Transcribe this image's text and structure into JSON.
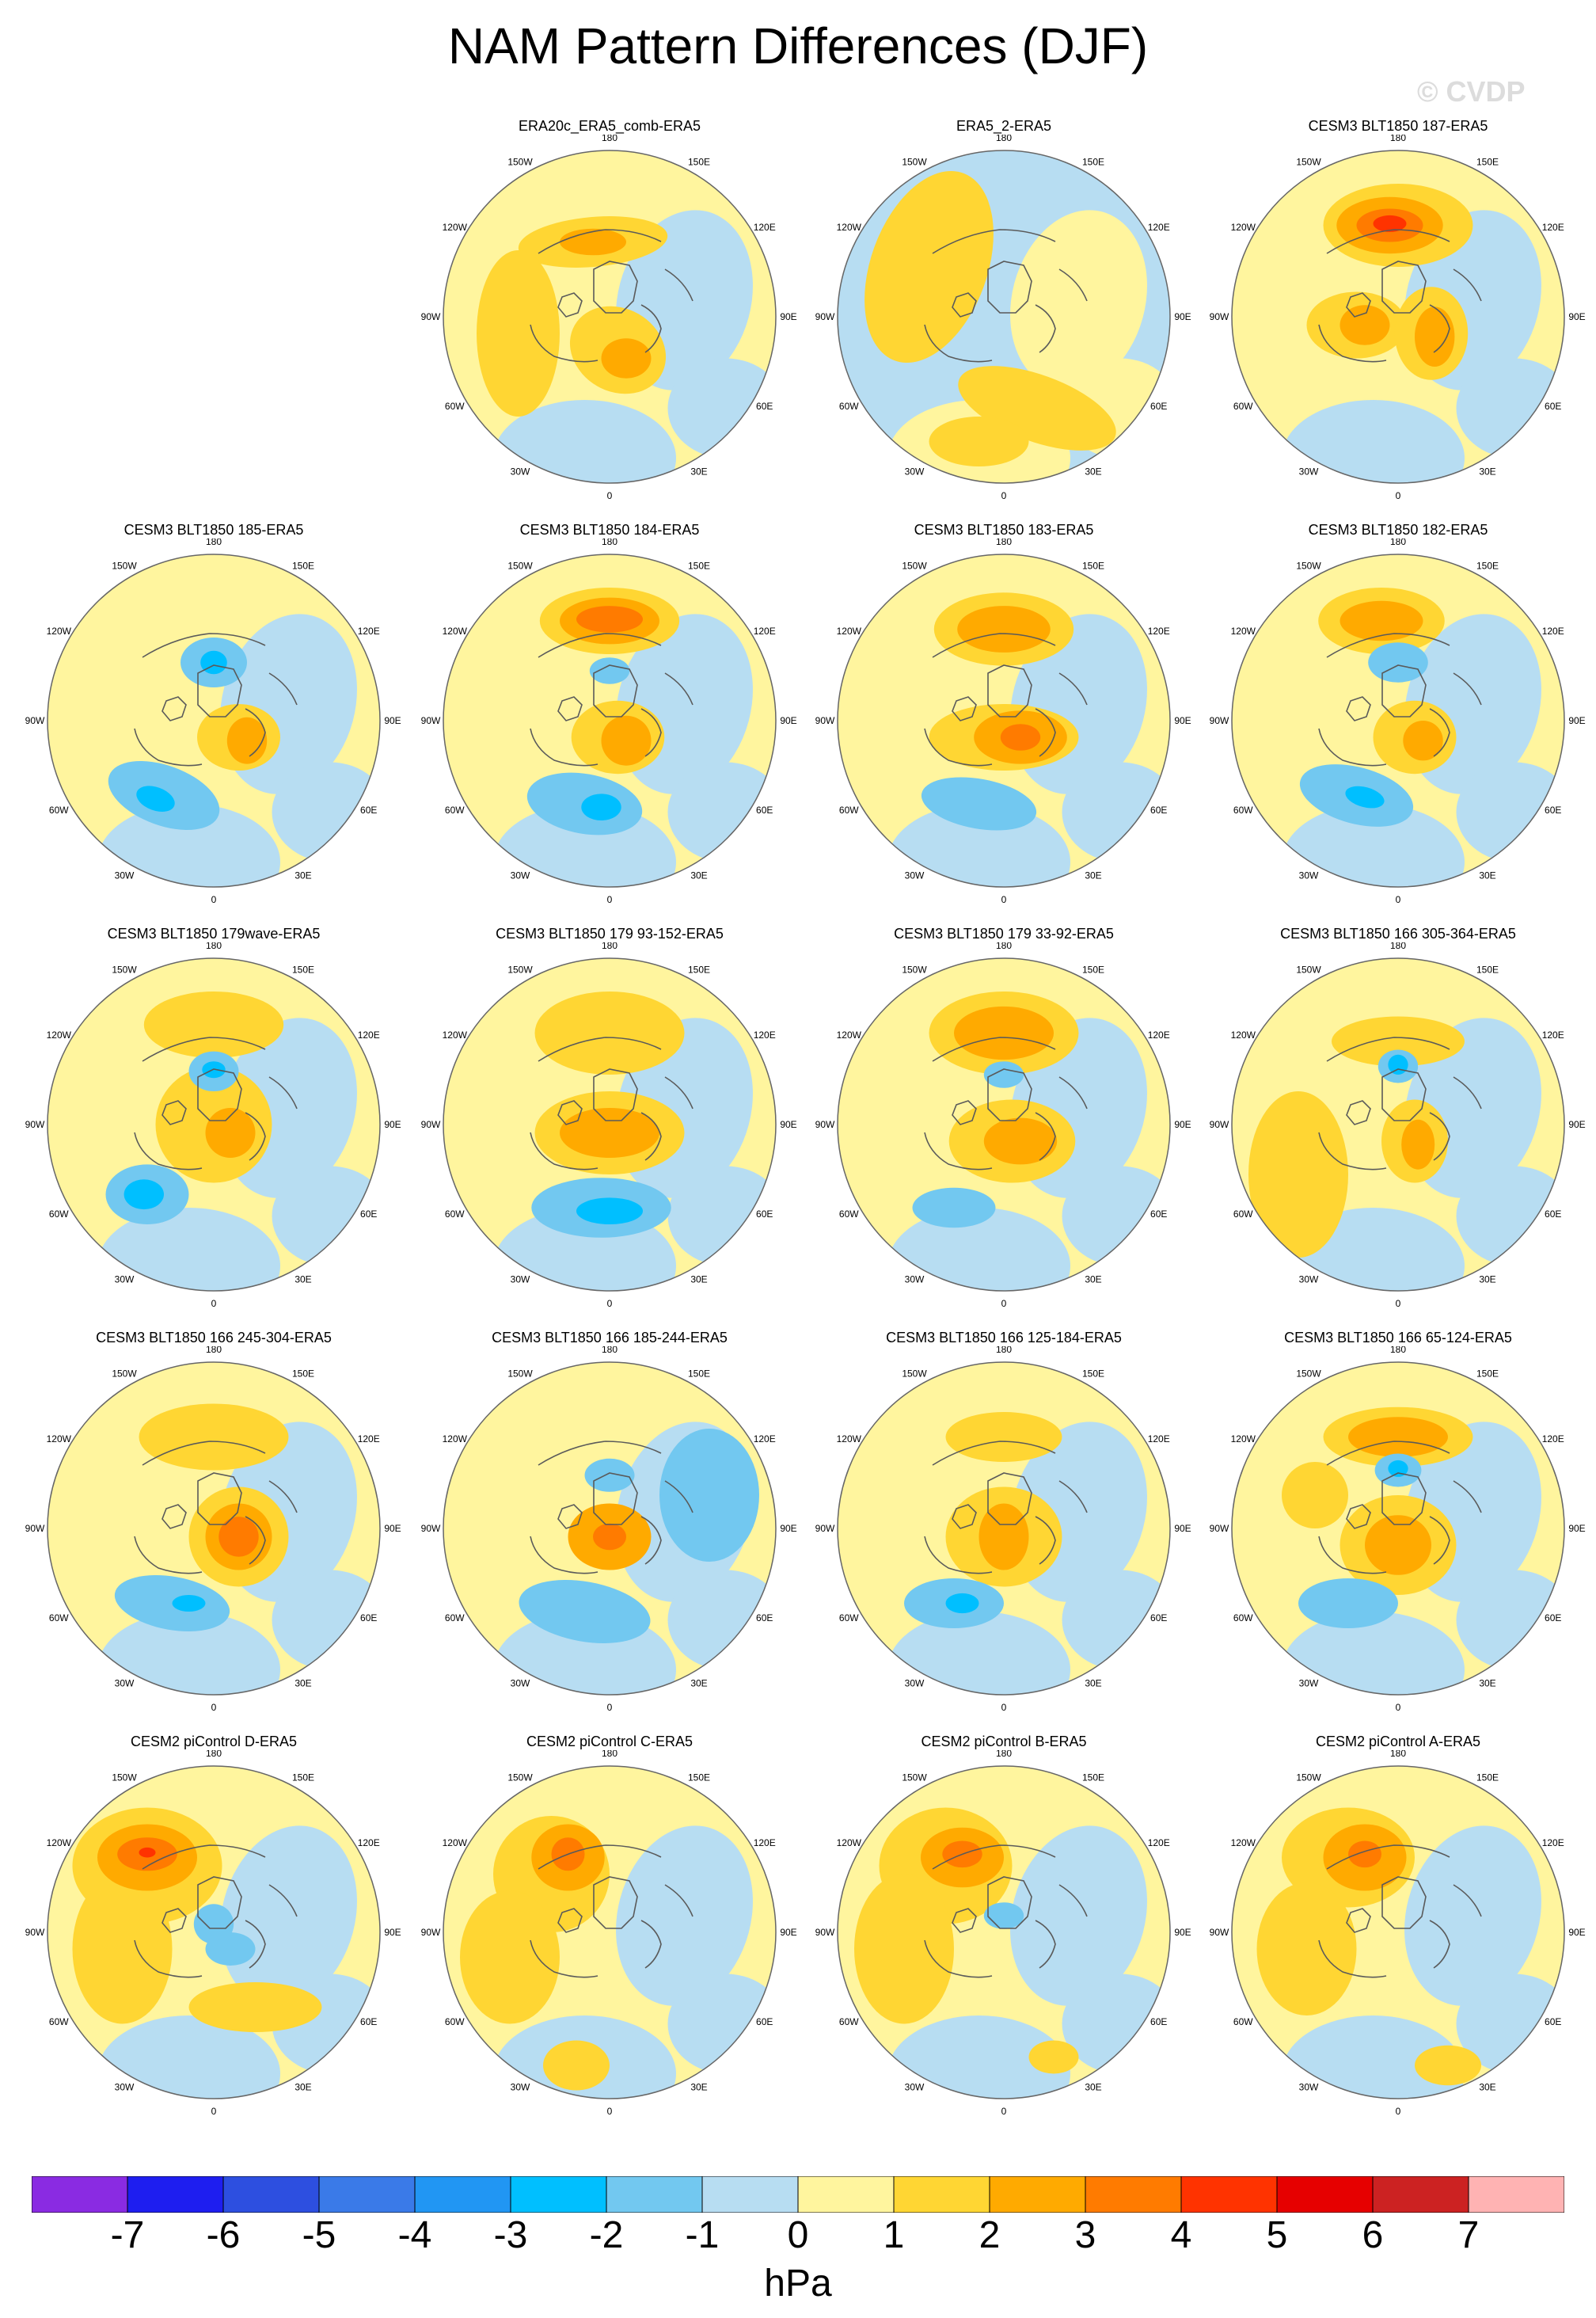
{
  "title": "NAM Pattern Differences (DJF)",
  "watermark": "© CVDP",
  "colors": {
    "bins": [
      "#8a2be2",
      "#1e1ef0",
      "#2d4fe0",
      "#3a7ae8",
      "#2196f3",
      "#00bfff",
      "#72c8f0",
      "#b7ddf2",
      "#fff59e",
      "#ffd633",
      "#ffaa00",
      "#ff7b00",
      "#ff3300",
      "#e60000",
      "#cc2222",
      "#ffb3b3"
    ],
    "coast": "#5a5a5a",
    "outline": "#666666"
  },
  "colorbar": {
    "labels": [
      "-7",
      "-6",
      "-5",
      "-4",
      "-3",
      "-2",
      "-1",
      "0",
      "1",
      "2",
      "3",
      "4",
      "5",
      "6",
      "7"
    ],
    "units": "hPa"
  },
  "lon_labels": {
    "top": "180",
    "tl": "150W",
    "tr": "150E",
    "ul": "120W",
    "ur": "120E",
    "l": "90W",
    "r": "90E",
    "ll": "60W",
    "lr": "60E",
    "bl": "30W",
    "br": "30E",
    "bottom": "0"
  },
  "panels": [
    {
      "title": "ERA20c_ERA5_comb-ERA5",
      "row": 0,
      "col": 1,
      "bg": 0,
      "blobs": [
        [
          "pos1",
          -0.1,
          -0.45,
          0.45,
          0.15,
          -5
        ],
        [
          "pos2",
          -0.1,
          -0.45,
          0.2,
          0.08,
          0
        ],
        [
          "pos1",
          0.05,
          0.2,
          0.3,
          0.25,
          30
        ],
        [
          "pos2",
          0.1,
          0.25,
          0.15,
          0.12,
          0
        ],
        [
          "pos1",
          -0.55,
          0.1,
          0.25,
          0.5,
          0
        ]
      ]
    },
    {
      "title": "ERA5_2-ERA5",
      "row": 0,
      "col": 2,
      "bg": -1,
      "blobs": [
        [
          "pos1",
          -0.45,
          -0.3,
          0.35,
          0.6,
          20
        ],
        [
          "pos1",
          0.2,
          0.55,
          0.5,
          0.2,
          20
        ],
        [
          "pos1",
          -0.15,
          0.75,
          0.3,
          0.15,
          0
        ]
      ]
    },
    {
      "title": "CESM3 BLT1850 187-ERA5",
      "row": 0,
      "col": 3,
      "bg": 0,
      "blobs": [
        [
          "pos1",
          0,
          -0.55,
          0.45,
          0.25,
          0
        ],
        [
          "pos2",
          -0.05,
          -0.55,
          0.32,
          0.17,
          0
        ],
        [
          "pos3",
          -0.05,
          -0.55,
          0.2,
          0.1,
          0
        ],
        [
          "pos4",
          -0.05,
          -0.56,
          0.1,
          0.05,
          0
        ],
        [
          "pos1",
          -0.25,
          0.05,
          0.3,
          0.2,
          0
        ],
        [
          "pos2",
          -0.2,
          0.05,
          0.15,
          0.12,
          0
        ],
        [
          "pos1",
          0.2,
          0.1,
          0.22,
          0.28,
          0
        ],
        [
          "pos2",
          0.22,
          0.12,
          0.12,
          0.18,
          0
        ]
      ]
    },
    {
      "title": "CESM3 BLT1850 185-ERA5",
      "row": 1,
      "col": 0,
      "bg": 1,
      "blobs": [
        [
          "neg1",
          0,
          -0.35,
          0.2,
          0.15,
          0
        ],
        [
          "neg2",
          0,
          -0.35,
          0.08,
          0.07,
          0
        ],
        [
          "pos1",
          0.15,
          0.1,
          0.25,
          0.2,
          0
        ],
        [
          "pos2",
          0.2,
          0.12,
          0.12,
          0.14,
          0
        ],
        [
          "neg1",
          -0.3,
          0.45,
          0.35,
          0.18,
          20
        ],
        [
          "neg2",
          -0.35,
          0.47,
          0.12,
          0.07,
          20
        ]
      ]
    },
    {
      "title": "CESM3 BLT1850 184-ERA5",
      "row": 1,
      "col": 1,
      "bg": 0,
      "blobs": [
        [
          "pos1",
          0,
          -0.6,
          0.42,
          0.2,
          0
        ],
        [
          "pos2",
          0,
          -0.6,
          0.3,
          0.14,
          0
        ],
        [
          "pos3",
          0,
          -0.61,
          0.2,
          0.08,
          0
        ],
        [
          "pos1",
          0.05,
          0.1,
          0.28,
          0.22,
          0
        ],
        [
          "pos2",
          0.1,
          0.12,
          0.15,
          0.15,
          0
        ],
        [
          "neg1",
          -0.15,
          0.5,
          0.35,
          0.18,
          10
        ],
        [
          "neg2",
          -0.05,
          0.52,
          0.12,
          0.08,
          0
        ],
        [
          "neg1",
          0,
          -0.3,
          0.12,
          0.08,
          0
        ]
      ]
    },
    {
      "title": "CESM3 BLT1850 183-ERA5",
      "row": 1,
      "col": 2,
      "bg": 0,
      "blobs": [
        [
          "pos1",
          0,
          -0.55,
          0.42,
          0.22,
          0
        ],
        [
          "pos2",
          0,
          -0.55,
          0.28,
          0.14,
          0
        ],
        [
          "pos1",
          0,
          0.1,
          0.45,
          0.2,
          0
        ],
        [
          "pos2",
          0.1,
          0.1,
          0.28,
          0.16,
          0
        ],
        [
          "pos3",
          0.1,
          0.1,
          0.12,
          0.08,
          0
        ],
        [
          "neg1",
          -0.15,
          0.5,
          0.35,
          0.15,
          10
        ]
      ]
    },
    {
      "title": "CESM3 BLT1850 182-ERA5",
      "row": 1,
      "col": 3,
      "bg": 0,
      "blobs": [
        [
          "pos1",
          -0.1,
          -0.6,
          0.38,
          0.2,
          0
        ],
        [
          "pos2",
          -0.1,
          -0.6,
          0.25,
          0.12,
          0
        ],
        [
          "neg1",
          0,
          -0.35,
          0.18,
          0.12,
          0
        ],
        [
          "pos1",
          0.1,
          0.1,
          0.25,
          0.22,
          0
        ],
        [
          "pos2",
          0.15,
          0.12,
          0.12,
          0.12,
          0
        ],
        [
          "neg1",
          -0.25,
          0.45,
          0.35,
          0.17,
          15
        ],
        [
          "neg2",
          -0.2,
          0.46,
          0.12,
          0.06,
          15
        ]
      ]
    },
    {
      "title": "CESM3 BLT1850 179wave-ERA5",
      "row": 2,
      "col": 0,
      "bg": 1,
      "blobs": [
        [
          "pos1",
          0,
          -0.6,
          0.42,
          0.2,
          0
        ],
        [
          "pos1",
          0,
          0,
          0.35,
          0.35,
          0
        ],
        [
          "neg1",
          0,
          -0.32,
          0.15,
          0.12,
          0
        ],
        [
          "neg2",
          0,
          -0.33,
          0.07,
          0.05,
          0
        ],
        [
          "pos2",
          0.1,
          0.05,
          0.15,
          0.15,
          0
        ],
        [
          "neg1",
          -0.4,
          0.42,
          0.25,
          0.18,
          0
        ],
        [
          "neg2",
          -0.42,
          0.42,
          0.12,
          0.09,
          0
        ]
      ]
    },
    {
      "title": "CESM3 BLT1850 179 93-152-ERA5",
      "row": 2,
      "col": 1,
      "bg": 1,
      "blobs": [
        [
          "pos1",
          0,
          -0.55,
          0.45,
          0.25,
          0
        ],
        [
          "pos1",
          0,
          0.05,
          0.45,
          0.25,
          0
        ],
        [
          "pos2",
          0,
          0.05,
          0.3,
          0.15,
          0
        ],
        [
          "neg1",
          -0.05,
          0.5,
          0.42,
          0.18,
          0
        ],
        [
          "neg2",
          0,
          0.52,
          0.2,
          0.08,
          0
        ]
      ]
    },
    {
      "title": "CESM3 BLT1850 179 33-92-ERA5",
      "row": 2,
      "col": 2,
      "bg": 1,
      "blobs": [
        [
          "pos1",
          0,
          -0.55,
          0.45,
          0.25,
          0
        ],
        [
          "pos2",
          0,
          -0.55,
          0.3,
          0.16,
          0
        ],
        [
          "pos1",
          0.05,
          0.1,
          0.38,
          0.25,
          0
        ],
        [
          "pos2",
          0.1,
          0.1,
          0.22,
          0.14,
          0
        ],
        [
          "neg1",
          0,
          -0.3,
          0.12,
          0.08,
          0
        ],
        [
          "neg1",
          -0.3,
          0.5,
          0.25,
          0.12,
          0
        ]
      ]
    },
    {
      "title": "CESM3 BLT1850 166 305-364-ERA5",
      "row": 2,
      "col": 3,
      "bg": 1,
      "blobs": [
        [
          "pos1",
          0,
          -0.5,
          0.4,
          0.15,
          0
        ],
        [
          "neg1",
          0,
          -0.35,
          0.12,
          0.1,
          0
        ],
        [
          "neg2",
          0,
          -0.36,
          0.06,
          0.06,
          0
        ],
        [
          "pos1",
          0.1,
          0.1,
          0.2,
          0.25,
          0
        ],
        [
          "pos2",
          0.12,
          0.12,
          0.1,
          0.15,
          0
        ],
        [
          "pos1",
          -0.6,
          0.3,
          0.3,
          0.5,
          0
        ]
      ]
    },
    {
      "title": "CESM3 BLT1850 166 245-304-ERA5",
      "row": 3,
      "col": 0,
      "bg": 1,
      "blobs": [
        [
          "pos1",
          0,
          -0.55,
          0.45,
          0.2,
          0
        ],
        [
          "pos1",
          0.15,
          0.05,
          0.3,
          0.3,
          0
        ],
        [
          "pos2",
          0.15,
          0.05,
          0.2,
          0.2,
          0
        ],
        [
          "pos3",
          0.15,
          0.05,
          0.12,
          0.12,
          0
        ],
        [
          "neg1",
          -0.25,
          0.45,
          0.35,
          0.16,
          10
        ],
        [
          "neg2",
          -0.15,
          0.45,
          0.1,
          0.05,
          0
        ]
      ]
    },
    {
      "title": "CESM3 BLT1850 166 185-244-ERA5",
      "row": 3,
      "col": 1,
      "bg": 0,
      "blobs": [
        [
          "pos2",
          0,
          0.05,
          0.25,
          0.2,
          0
        ],
        [
          "pos3",
          0,
          0.05,
          0.1,
          0.08,
          0
        ],
        [
          "neg1",
          0,
          -0.32,
          0.15,
          0.1,
          0
        ],
        [
          "neg1",
          -0.15,
          0.5,
          0.4,
          0.18,
          10
        ],
        [
          "neg1",
          0.6,
          -0.2,
          0.3,
          0.4,
          0
        ]
      ]
    },
    {
      "title": "CESM3 BLT1850 166 125-184-ERA5",
      "row": 3,
      "col": 2,
      "bg": 1,
      "blobs": [
        [
          "pos1",
          0,
          -0.55,
          0.35,
          0.15,
          0
        ],
        [
          "pos1",
          0,
          0.05,
          0.35,
          0.3,
          0
        ],
        [
          "pos2",
          0,
          0.05,
          0.15,
          0.2,
          0
        ],
        [
          "neg1",
          -0.3,
          0.45,
          0.3,
          0.15,
          0
        ],
        [
          "neg2",
          -0.25,
          0.45,
          0.1,
          0.06,
          0
        ]
      ]
    },
    {
      "title": "CESM3 BLT1850 166 65-124-ERA5",
      "row": 3,
      "col": 3,
      "bg": 1,
      "blobs": [
        [
          "pos1",
          0,
          -0.55,
          0.45,
          0.18,
          0
        ],
        [
          "pos2",
          0,
          -0.55,
          0.3,
          0.12,
          0
        ],
        [
          "neg1",
          0,
          -0.35,
          0.14,
          0.1,
          0
        ],
        [
          "neg2",
          0,
          -0.36,
          0.06,
          0.05,
          0
        ],
        [
          "pos1",
          0,
          0.1,
          0.35,
          0.3,
          0
        ],
        [
          "pos2",
          0,
          0.1,
          0.2,
          0.18,
          0
        ],
        [
          "neg1",
          -0.3,
          0.45,
          0.3,
          0.15,
          0
        ],
        [
          "pos1",
          -0.5,
          -0.2,
          0.2,
          0.2,
          0
        ]
      ]
    },
    {
      "title": "CESM2 piControl D-ERA5",
      "row": 4,
      "col": 0,
      "bg": 1,
      "blobs": [
        [
          "pos1",
          -0.4,
          -0.4,
          0.45,
          0.35,
          0
        ],
        [
          "pos1",
          -0.55,
          0.1,
          0.3,
          0.45,
          0
        ],
        [
          "pos2",
          -0.4,
          -0.45,
          0.3,
          0.2,
          0
        ],
        [
          "pos3",
          -0.4,
          -0.47,
          0.18,
          0.1,
          0
        ],
        [
          "pos4",
          -0.4,
          -0.48,
          0.05,
          0.03,
          0
        ],
        [
          "neg1",
          0.1,
          0.1,
          0.15,
          0.1,
          0
        ],
        [
          "neg1",
          0,
          -0.05,
          0.12,
          0.12,
          0
        ],
        [
          "pos1",
          0.25,
          0.45,
          0.4,
          0.15,
          0
        ]
      ]
    },
    {
      "title": "CESM2 piControl C-ERA5",
      "row": 4,
      "col": 1,
      "bg": 1,
      "blobs": [
        [
          "pos1",
          -0.35,
          -0.35,
          0.35,
          0.35,
          0
        ],
        [
          "pos2",
          -0.25,
          -0.45,
          0.22,
          0.2,
          0
        ],
        [
          "pos3",
          -0.25,
          -0.47,
          0.1,
          0.1,
          0
        ],
        [
          "pos1",
          -0.6,
          0.15,
          0.3,
          0.4,
          0
        ],
        [
          "pos1",
          -0.2,
          0.8,
          0.2,
          0.15,
          0
        ]
      ]
    },
    {
      "title": "CESM2 piControl B-ERA5",
      "row": 4,
      "col": 2,
      "bg": 1,
      "blobs": [
        [
          "pos1",
          -0.35,
          -0.4,
          0.4,
          0.35,
          0
        ],
        [
          "pos2",
          -0.25,
          -0.45,
          0.25,
          0.18,
          0
        ],
        [
          "pos3",
          -0.25,
          -0.47,
          0.12,
          0.08,
          0
        ],
        [
          "pos1",
          -0.6,
          0.1,
          0.3,
          0.45,
          0
        ],
        [
          "neg1",
          0,
          -0.1,
          0.12,
          0.08,
          0
        ],
        [
          "pos1",
          0.3,
          0.75,
          0.15,
          0.1,
          0
        ]
      ]
    },
    {
      "title": "CESM2 piControl A-ERA5",
      "row": 4,
      "col": 3,
      "bg": 1,
      "blobs": [
        [
          "pos1",
          -0.3,
          -0.45,
          0.4,
          0.3,
          0
        ],
        [
          "pos2",
          -0.2,
          -0.45,
          0.25,
          0.2,
          0
        ],
        [
          "pos3",
          -0.2,
          -0.47,
          0.1,
          0.08,
          0
        ],
        [
          "pos1",
          -0.55,
          0.1,
          0.3,
          0.4,
          0
        ],
        [
          "pos1",
          0.3,
          0.8,
          0.2,
          0.12,
          0
        ]
      ]
    }
  ]
}
